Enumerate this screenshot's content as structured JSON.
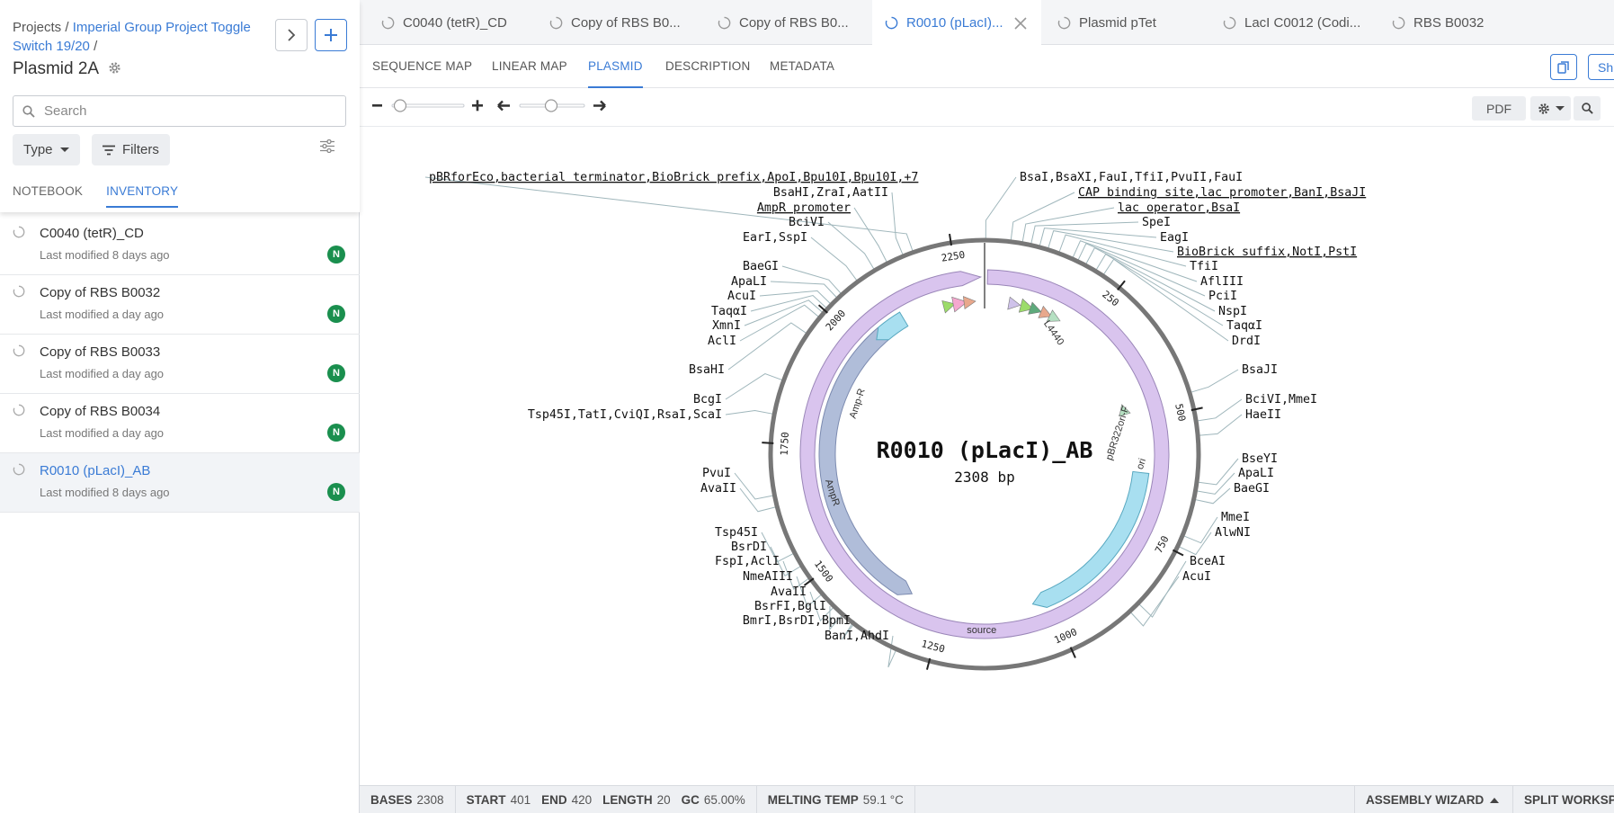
{
  "sidebar": {
    "breadcrumb_prefix": "Projects /",
    "breadcrumb_project": "Imperial Group Project Toggle Switch 19/20",
    "breadcrumb_sep": "/",
    "title": "Plasmid 2A",
    "search_placeholder": "Search",
    "type_label": "Type",
    "filters_label": "Filters",
    "tabs": [
      "NOTEBOOK",
      "INVENTORY"
    ],
    "items": [
      {
        "name": "C0040 (tetR)_CD",
        "modified": "Last modified 8 days ago",
        "badge": "N"
      },
      {
        "name": "Copy of RBS B0032",
        "modified": "Last modified a day ago",
        "badge": "N"
      },
      {
        "name": "Copy of RBS B0033",
        "modified": "Last modified a day ago",
        "badge": "N"
      },
      {
        "name": "Copy of RBS B0034",
        "modified": "Last modified a day ago",
        "badge": "N"
      },
      {
        "name": "R0010 (pLacI)_AB",
        "modified": "Last modified 8 days ago",
        "badge": "N"
      }
    ]
  },
  "file_tabs": [
    "C0040 (tetR)_CD",
    "Copy of RBS B0...",
    "Copy of RBS B0...",
    "R0010 (pLacI)...",
    "Plasmid pTet",
    "LacI C0012 (Codi...",
    "RBS B0032"
  ],
  "view_tabs": [
    "SEQUENCE MAP",
    "LINEAR MAP",
    "PLASMID",
    "DESCRIPTION",
    "METADATA"
  ],
  "toolbar": {
    "pdf_label": "PDF",
    "share_label": "Sh"
  },
  "map": {
    "name": "R0010 (pLacI)_AB",
    "length_label": "2308 bp",
    "ticks": [
      "250",
      "500",
      "750",
      "1000",
      "1250",
      "1500",
      "1750",
      "2000",
      "2250"
    ],
    "feature_labels": [
      "L4440",
      "pBR322ori-F",
      "ori",
      "source",
      "AmpR",
      "Amp-R"
    ],
    "enzyme_labels": [
      "pBRforEco,bacterial terminator,BioBrick prefix,ApoI,Bpu10I,Bpu10I,+7",
      "BsaHI,ZraI,AatII",
      "AmpR promoter",
      "BciVI",
      "EarI,SspI",
      "BaeGI",
      "ApaLI",
      "AcuI",
      "TaqαI",
      "XmnI",
      "AclI",
      "BsaHI",
      "BcgI",
      "Tsp45I,TatI,CviQI,RsaI,ScaI",
      "PvuI",
      "AvaII",
      "Tsp45I",
      "BsrDI",
      "FspI,AclI",
      "NmeAIII",
      "AvaII",
      "BsrFI,BglI",
      "BmrI,BsrDI,BpmI",
      "BanI,AhdI",
      "BsaI,BsaXI,FauI,TfiI,PvuII,FauI",
      "CAP binding site,lac promoter,BanI,BsaJI",
      "lac operator,BsaI",
      "SpeI",
      "EagI",
      "BioBrick suffix,NotI,PstI",
      "TfiI",
      "AflIII",
      "PciI",
      "NspI",
      "TaqαI",
      "DrdI",
      "BsaJI",
      "BciVI,MmeI",
      "HaeII",
      "BseYI",
      "ApaLI",
      "BaeGI",
      "MmeI",
      "AlwNI",
      "BceAI",
      "AcuI"
    ]
  },
  "status": {
    "bases_label": "BASES",
    "bases": "2308",
    "start_label": "START",
    "start": "401",
    "end_label": "END",
    "end": "420",
    "length_label": "LENGTH",
    "length": "20",
    "gc_label": "GC",
    "gc": "65.00%",
    "melt_label": "MELTING TEMP",
    "melt": "59.1 °C",
    "assembly_label": "ASSEMBLY WIZARD",
    "split_label": "SPLIT WORKSP"
  },
  "colors": {
    "accent": "#3a7bd5",
    "badge": "#1a8f4e",
    "backbone": "#d9c4ee",
    "ori": "#a8dff0",
    "ampr": "#b0bdd9"
  }
}
